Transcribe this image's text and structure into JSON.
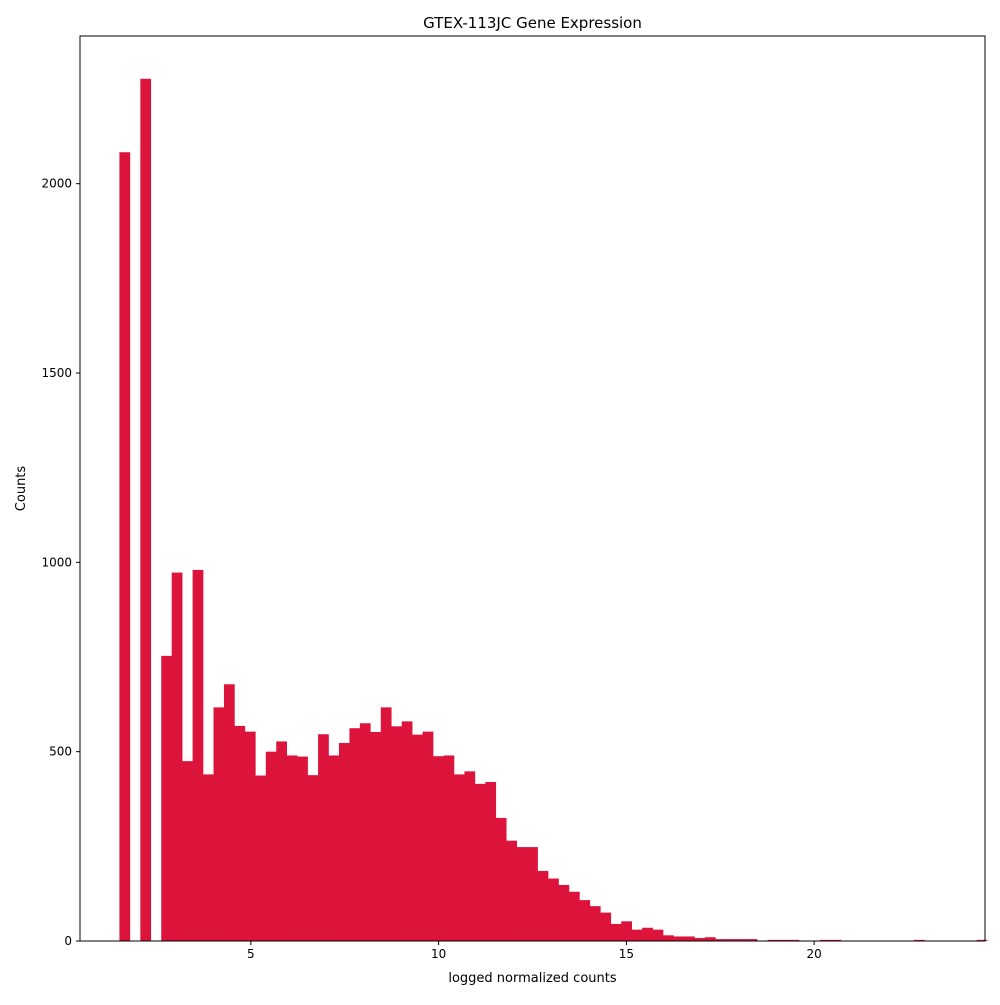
{
  "chart_data": {
    "type": "bar",
    "title": "GTEX-113JC Gene Expression",
    "xlabel": "logged normalized counts",
    "ylabel": "Counts",
    "xlim": [
      0.45,
      24.55
    ],
    "ylim": [
      0,
      2390
    ],
    "x_ticks": [
      5,
      10,
      15,
      20
    ],
    "y_ticks": [
      0,
      500,
      1000,
      1500,
      2000
    ],
    "grid": false,
    "bar_color": "#DC143C",
    "bin_start": 1.5,
    "bin_width": 0.2784,
    "values": [
      2083,
      0,
      2277,
      0,
      753,
      973,
      475,
      980,
      440,
      617,
      678,
      568,
      553,
      437,
      500,
      527,
      490,
      487,
      438,
      546,
      490,
      523,
      562,
      575,
      552,
      617,
      567,
      580,
      545,
      553,
      488,
      490,
      440,
      448,
      415,
      420,
      325,
      265,
      248,
      248,
      185,
      165,
      148,
      130,
      108,
      92,
      75,
      45,
      52,
      30,
      35,
      30,
      15,
      12,
      12,
      8,
      10,
      5,
      5,
      5,
      5,
      0,
      3,
      3,
      3,
      0,
      0,
      3,
      3,
      0,
      0,
      0,
      0,
      0,
      0,
      0,
      3,
      0,
      0,
      0,
      0,
      0,
      3
    ]
  }
}
